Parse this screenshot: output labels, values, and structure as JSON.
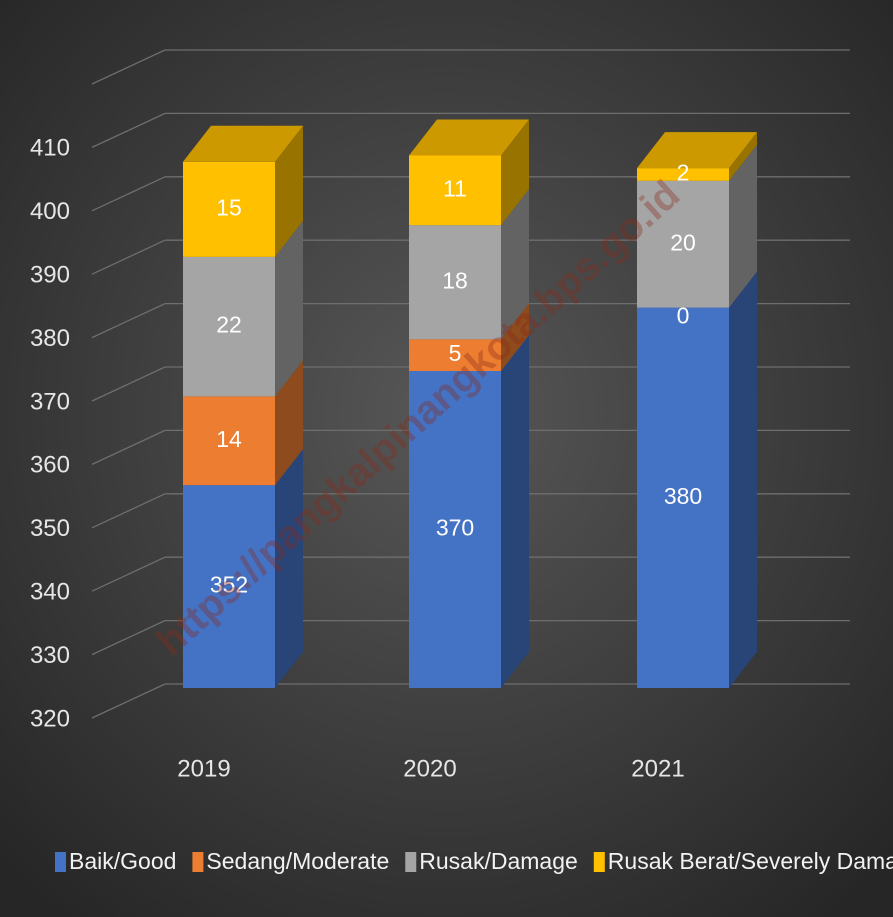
{
  "chart_data": {
    "type": "bar3d_stacked",
    "categories": [
      "2019",
      "2020",
      "2021"
    ],
    "series": [
      {
        "name": "Baik/Good",
        "color": "#4472c4",
        "values": [
          352,
          370,
          380
        ]
      },
      {
        "name": "Sedang/Moderate",
        "color": "#ed7d31",
        "values": [
          14,
          5,
          0
        ]
      },
      {
        "name": "Rusak/Damage",
        "color": "#a5a5a5",
        "values": [
          22,
          18,
          20
        ]
      },
      {
        "name": "Rusak Berat/Severely Damage",
        "color": "#ffc000",
        "values": [
          15,
          11,
          2
        ]
      }
    ],
    "ylim": [
      320,
      420
    ],
    "yticks": [
      320,
      330,
      340,
      350,
      360,
      370,
      380,
      390,
      400,
      410
    ],
    "grid": true,
    "legend": "bottom",
    "watermark": "https://pangkalpinangkota.bps.go.id"
  }
}
